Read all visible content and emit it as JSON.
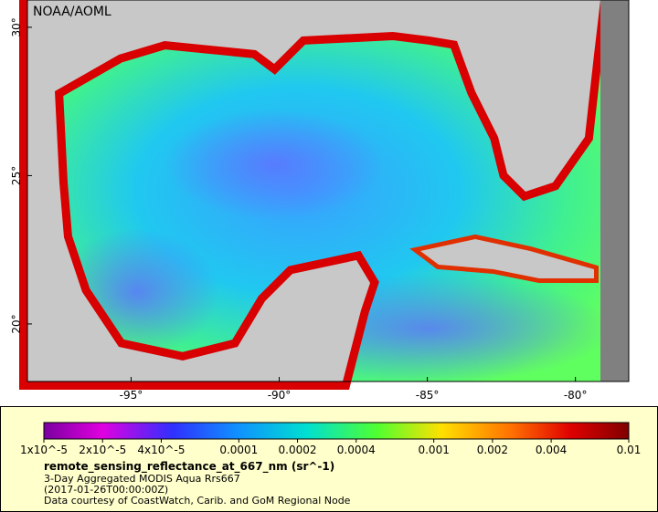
{
  "map": {
    "credit": "NOAA/AOML",
    "xlim": [
      -98.5,
      -78.2
    ],
    "ylim": [
      18.06,
      30.92
    ],
    "xticks": [
      {
        "value": -95,
        "label": "-95°"
      },
      {
        "value": -90,
        "label": "-90°"
      },
      {
        "value": -85,
        "label": "-85°"
      },
      {
        "value": -80,
        "label": "-80°"
      }
    ],
    "yticks": [
      {
        "value": 30,
        "label": "30°"
      },
      {
        "value": 25,
        "label": "25°"
      },
      {
        "value": 20,
        "label": "20°"
      }
    ]
  },
  "colorbar": {
    "log": true,
    "lim": [
      1e-05,
      0.01
    ],
    "ticks": [
      {
        "value": 1e-05,
        "label": "1x10^-5"
      },
      {
        "value": 2e-05,
        "label": "2x10^-5"
      },
      {
        "value": 4e-05,
        "label": "4x10^-5"
      },
      0.0001,
      0.0002,
      0.0004,
      0.001,
      0.002,
      0.004,
      0.01
    ]
  },
  "legend": {
    "variable": "remote_sensing_reflectance_at_667_nm (sr^-1)",
    "lines": [
      "3-Day Aggregated MODIS Aqua Rrs667",
      "(2017-01-26T00:00:00Z)",
      "Data courtesy of CoastWatch, Carib. and GoM Regional Node"
    ]
  }
}
